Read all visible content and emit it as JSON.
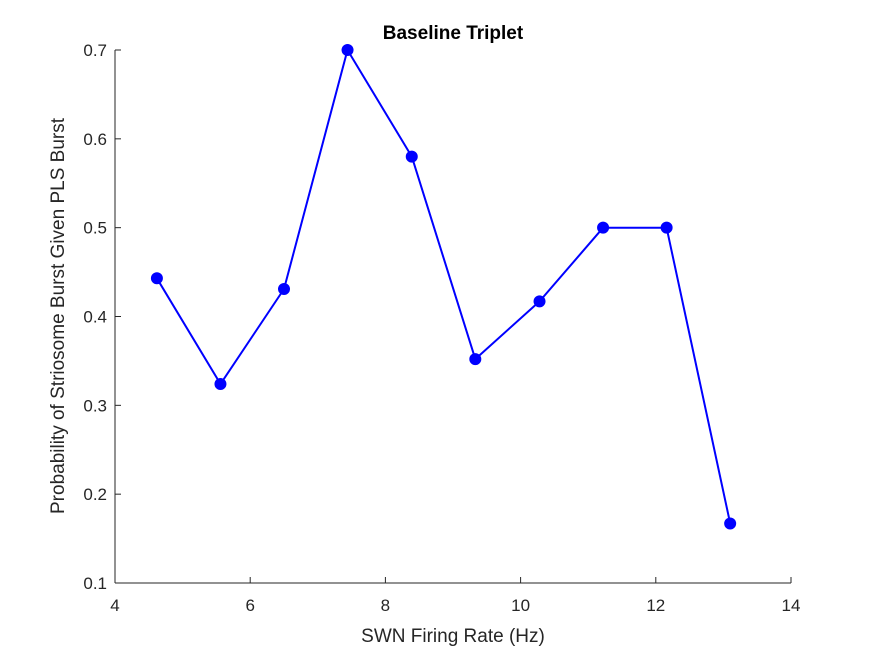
{
  "chart_data": {
    "type": "line",
    "title": "Baseline Triplet",
    "xlabel": "SWN Firing Rate (Hz)",
    "ylabel": "Probability of Striosome Burst Given PLS Burst",
    "xlim": [
      4,
      14
    ],
    "ylim": [
      0.1,
      0.7
    ],
    "xticks": [
      4,
      6,
      8,
      10,
      12,
      14
    ],
    "yticks": [
      0.1,
      0.2,
      0.3,
      0.4,
      0.5,
      0.6,
      0.7
    ],
    "xtick_labels": [
      "4",
      "6",
      "8",
      "10",
      "12",
      "14"
    ],
    "ytick_labels": [
      "0.1",
      "0.2",
      "0.3",
      "0.4",
      "0.5",
      "0.6",
      "0.7"
    ],
    "grid": false,
    "series": [
      {
        "color": "#0000ff",
        "marker": "filled-circle",
        "x": [
          4.62,
          5.56,
          6.5,
          7.44,
          8.39,
          9.33,
          10.28,
          11.22,
          12.16,
          13.1
        ],
        "y": [
          0.443,
          0.324,
          0.431,
          0.7,
          0.58,
          0.352,
          0.417,
          0.5,
          0.5,
          0.167
        ]
      }
    ]
  }
}
